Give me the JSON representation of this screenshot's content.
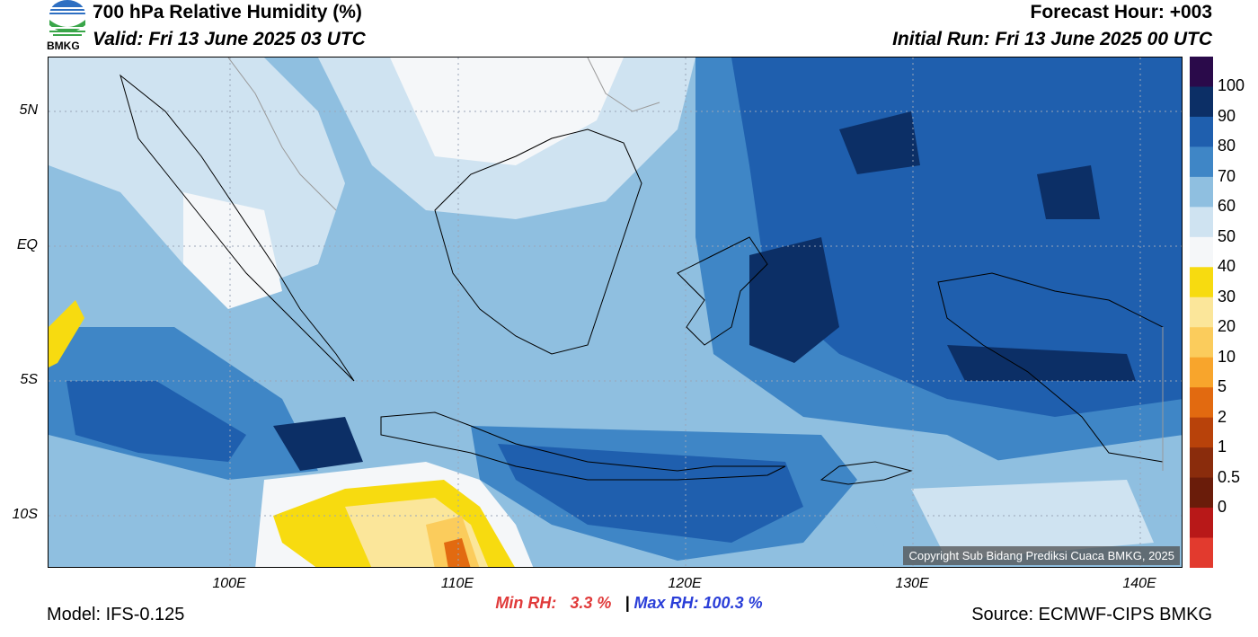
{
  "header": {
    "title": "700 hPa Relative Humidity (%)",
    "valid": "Valid: Fri 13 June 2025 03 UTC",
    "forecast_hour": "Forecast Hour: +003",
    "initial_run": "Initial Run: Fri 13 June 2025 00 UTC"
  },
  "logo": {
    "text": "BMKG",
    "icon": "bmkg-logo-icon"
  },
  "axes": {
    "y_labels": [
      "5N",
      "EQ",
      "5S",
      "10S"
    ],
    "x_labels": [
      "100E",
      "110E",
      "120E",
      "130E",
      "140E"
    ]
  },
  "colorbar": {
    "labels": [
      "100",
      "90",
      "80",
      "70",
      "60",
      "50",
      "40",
      "30",
      "20",
      "10",
      "5",
      "2",
      "1",
      "0.5",
      "0"
    ],
    "colors": [
      "#2a0a4a",
      "#0c2f66",
      "#1f5fae",
      "#3f86c6",
      "#8fbfe0",
      "#cfe3f1",
      "#f5f7f9",
      "#f7db10",
      "#fbe69a",
      "#fbcc5c",
      "#f8a52c",
      "#e26a10",
      "#b8420a",
      "#8a2c0c",
      "#6a1c0a",
      "#b81818",
      "#e23a2e"
    ]
  },
  "copyright": "Copyright Sub Bidang Prediksi Cuaca BMKG, 2025",
  "stats": {
    "min_label": "Min RH:",
    "min_value": "3.3 %",
    "separator": "|",
    "max_label": "Max RH:",
    "max_value": "100.3 %"
  },
  "footer": {
    "model": "Model: IFS-0.125",
    "source": "Source: ECMWF-CIPS BMKG"
  }
}
